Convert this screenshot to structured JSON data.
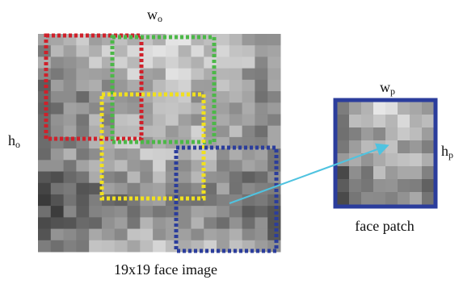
{
  "labels": {
    "image_width": {
      "main": "w",
      "sub": "o"
    },
    "image_height": {
      "main": "h",
      "sub": "o"
    },
    "patch_width": {
      "main": "w",
      "sub": "p"
    },
    "patch_height": {
      "main": "h",
      "sub": "p"
    },
    "patch_caption": "face patch",
    "image_caption": "19x19 face image"
  }
}
